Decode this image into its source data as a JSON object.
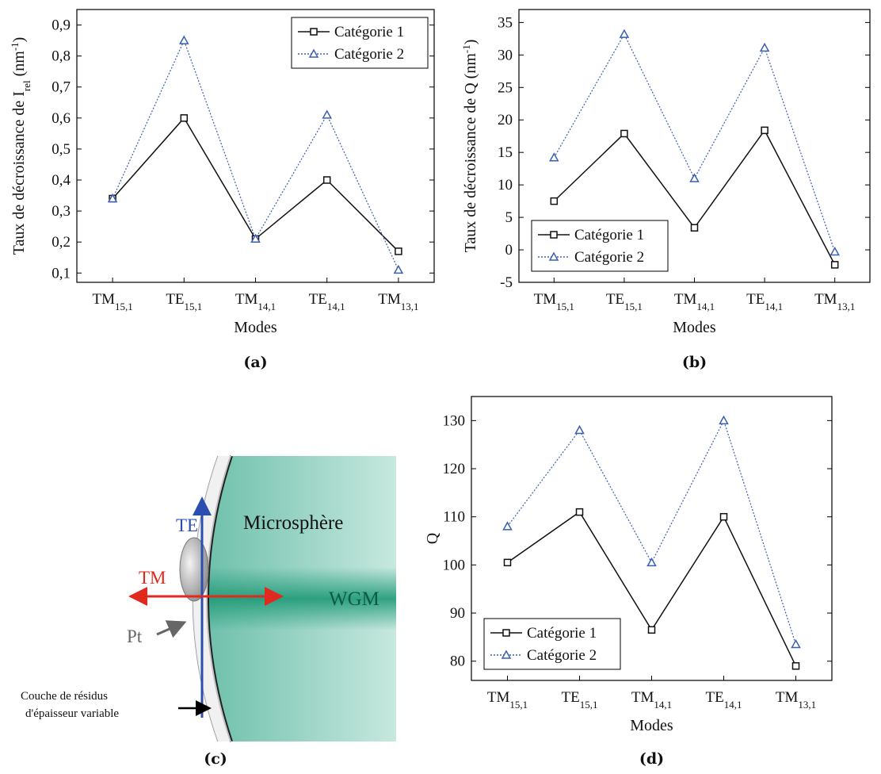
{
  "chart_data": [
    {
      "type": "line",
      "caption": "(a)",
      "ylabel": [
        {
          "text": "Taux de décroissance de I"
        },
        {
          "text": "rel",
          "shift": "sub"
        },
        {
          "text": " (nm"
        },
        {
          "text": "-1",
          "shift": "super"
        },
        {
          "text": ")"
        }
      ],
      "xlabel": "Modes",
      "categories": [
        {
          "main": "TM",
          "sub": "15,1"
        },
        {
          "main": "TE",
          "sub": "15,1"
        },
        {
          "main": "TM",
          "sub": "14,1"
        },
        {
          "main": "TE",
          "sub": "14,1"
        },
        {
          "main": "TM",
          "sub": "13,1"
        }
      ],
      "ylim": [
        0.07,
        0.95
      ],
      "yticks": [
        {
          "value": 0.1,
          "label": "0,1"
        },
        {
          "value": 0.2,
          "label": "0,2"
        },
        {
          "value": 0.3,
          "label": "0,3"
        },
        {
          "value": 0.4,
          "label": "0,4"
        },
        {
          "value": 0.5,
          "label": "0,5"
        },
        {
          "value": 0.6,
          "label": "0,6"
        },
        {
          "value": 0.7,
          "label": "0,7"
        },
        {
          "value": 0.8,
          "label": "0,8"
        },
        {
          "value": 0.9,
          "label": "0,9"
        }
      ],
      "legend": "upper right",
      "series": [
        {
          "name": "Catégorie 1",
          "color": "#111111",
          "marker": "square",
          "linestyle": "solid",
          "values": [
            0.34,
            0.6,
            0.21,
            0.4,
            0.17
          ]
        },
        {
          "name": "Catégorie 2",
          "color": "#3a5fb0",
          "marker": "triangle",
          "linestyle": "dotted",
          "values": [
            0.34,
            0.85,
            0.21,
            0.61,
            0.11
          ]
        }
      ]
    },
    {
      "type": "line",
      "caption": "(b)",
      "ylabel": [
        {
          "text": "Taux de décroissance de Q (nm"
        },
        {
          "text": "-1",
          "shift": "super"
        },
        {
          "text": ")"
        }
      ],
      "xlabel": "Modes",
      "categories": [
        {
          "main": "TM",
          "sub": "15,1"
        },
        {
          "main": "TE",
          "sub": "15,1"
        },
        {
          "main": "TM",
          "sub": "14,1"
        },
        {
          "main": "TE",
          "sub": "14,1"
        },
        {
          "main": "TM",
          "sub": "13,1"
        }
      ],
      "ylim": [
        -5,
        37
      ],
      "yticks": [
        -5,
        0,
        5,
        10,
        15,
        20,
        25,
        30,
        35
      ],
      "legend": "lower left",
      "series": [
        {
          "name": "Catégorie 1",
          "color": "#111111",
          "marker": "square",
          "linestyle": "solid",
          "values": [
            7.5,
            17.9,
            3.4,
            18.4,
            -2.3
          ]
        },
        {
          "name": "Catégorie 2",
          "color": "#3a5fb0",
          "marker": "triangle",
          "linestyle": "dotted",
          "values": [
            14.2,
            33.2,
            11.0,
            31.1,
            -0.3
          ]
        }
      ]
    },
    {
      "type": "line",
      "caption": "(d)",
      "ylabel": "Q",
      "xlabel": "Modes",
      "categories": [
        {
          "main": "TM",
          "sub": "15,1"
        },
        {
          "main": "TE",
          "sub": "15,1"
        },
        {
          "main": "TM",
          "sub": "14,1"
        },
        {
          "main": "TE",
          "sub": "14,1"
        },
        {
          "main": "TM",
          "sub": "13,1"
        }
      ],
      "ylim": [
        76,
        135
      ],
      "yticks": [
        80,
        90,
        100,
        110,
        120,
        130
      ],
      "legend": "lower left",
      "series": [
        {
          "name": "Catégorie 1",
          "color": "#111111",
          "marker": "square",
          "linestyle": "solid",
          "values": [
            100.5,
            111,
            86.5,
            110,
            79
          ]
        },
        {
          "name": "Catégorie 2",
          "color": "#3a5fb0",
          "marker": "triangle",
          "linestyle": "dotted",
          "values": [
            108,
            128,
            100.5,
            130,
            83.5
          ]
        }
      ]
    }
  ],
  "diagram": {
    "caption": "(c)",
    "sphere": "Microsphère",
    "te": "TE",
    "tm": "TM",
    "wgm": "WGM",
    "pt": "Pt",
    "layer": [
      "Couche de résidus",
      "d'épaisseur variable"
    ]
  }
}
